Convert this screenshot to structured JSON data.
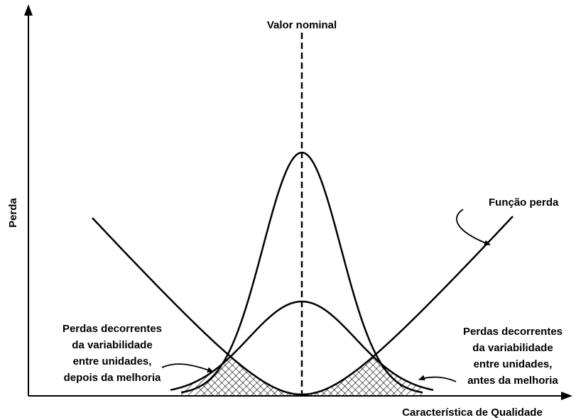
{
  "labels": {
    "nominal": "Valor nominal",
    "y_axis": "Perda",
    "x_axis": "Característica de Qualidade",
    "loss_function": "Função perda",
    "left_note": [
      "Perdas decorrentes",
      "da variabilidade",
      "entre unidades,",
      "depois da melhoria"
    ],
    "right_note": [
      "Perdas decorrentes",
      "da variabilidade",
      "entre unidades,",
      "antes da melhoria"
    ]
  }
}
